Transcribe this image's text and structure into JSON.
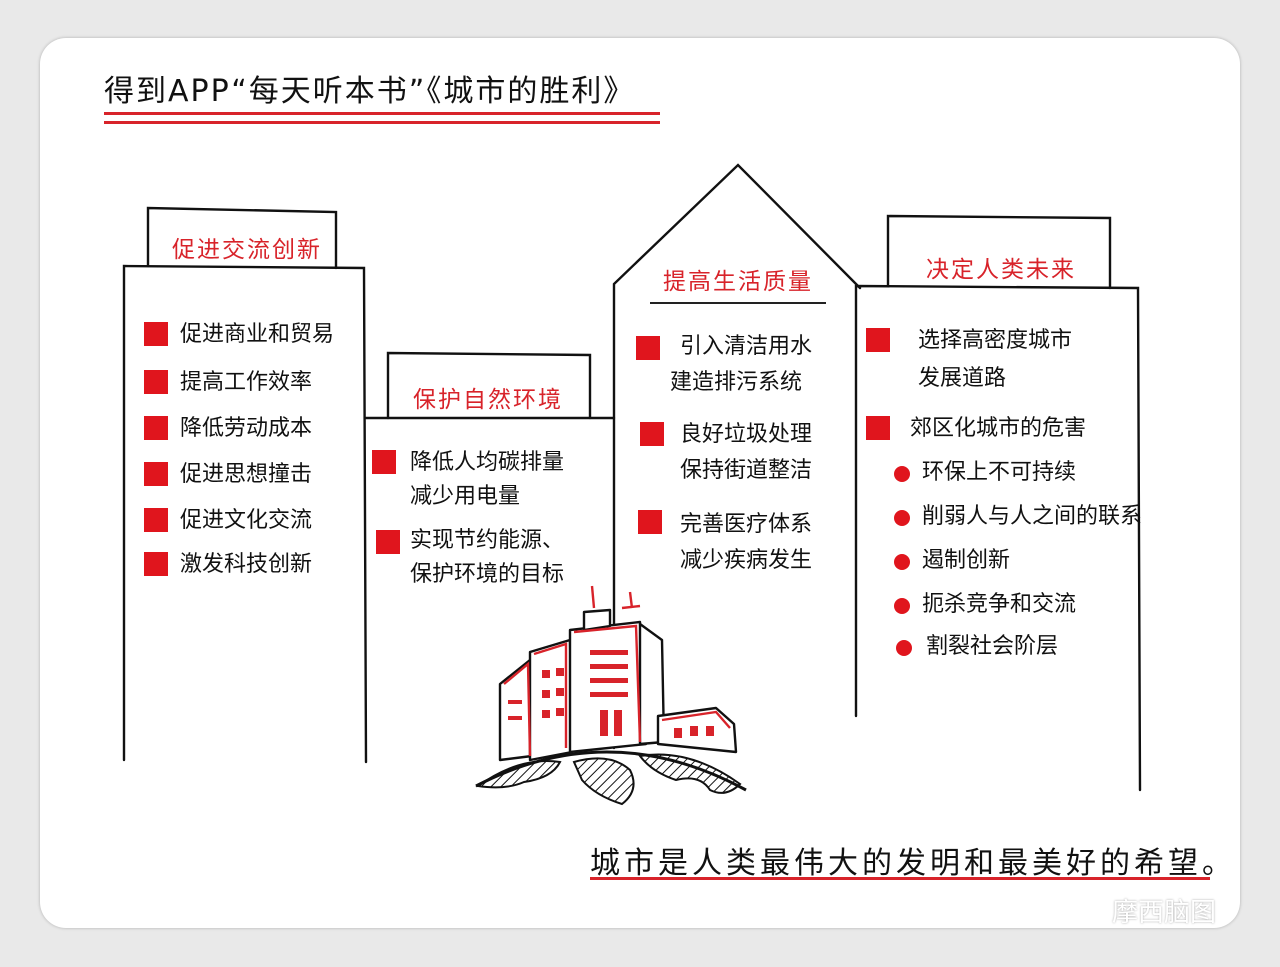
{
  "title": "得到APP“每天听本书”《城市的胜利》",
  "colors": {
    "accent": "#d8232a",
    "ink": "#111111"
  },
  "columns": [
    {
      "heading": "促进交流创新",
      "items": [
        "促进商业和贸易",
        "提高工作效率",
        "降低劳动成本",
        "促进思想撞击",
        "促进文化交流",
        "激发科技创新"
      ]
    },
    {
      "heading": "保护自然环境",
      "items": [
        {
          "line1": "降低人均碳排量",
          "line2": "减少用电量"
        },
        {
          "line1": "实现节约能源、",
          "line2": "保护环境的目标"
        }
      ]
    },
    {
      "heading": "提高生活质量",
      "items": [
        {
          "line1": "引入清洁用水",
          "line2": "建造排污系统"
        },
        {
          "line1": "良好垃圾处理",
          "line2": "保持街道整洁"
        },
        {
          "line1": "完善医疗体系",
          "line2": "减少疾病发生"
        }
      ]
    },
    {
      "heading": "决定人类未来",
      "items": [
        {
          "line1": "选择高密度城市",
          "line2": "发展道路"
        },
        {
          "line1": "郊区化城市的危害",
          "line2": ""
        }
      ],
      "subitems": [
        "环保上不可持续",
        "削弱人与人之间的联系",
        "遏制创新",
        "扼杀竞争和交流",
        "割裂社会阶层"
      ]
    }
  ],
  "quote": "城市是人类最伟大的发明和最美好的希望。",
  "watermark": "摩西脑图",
  "icons": [
    "city-illustration",
    "globe-icon",
    "wechat-icon",
    "square-bullet-icon",
    "dot-bullet-icon"
  ]
}
